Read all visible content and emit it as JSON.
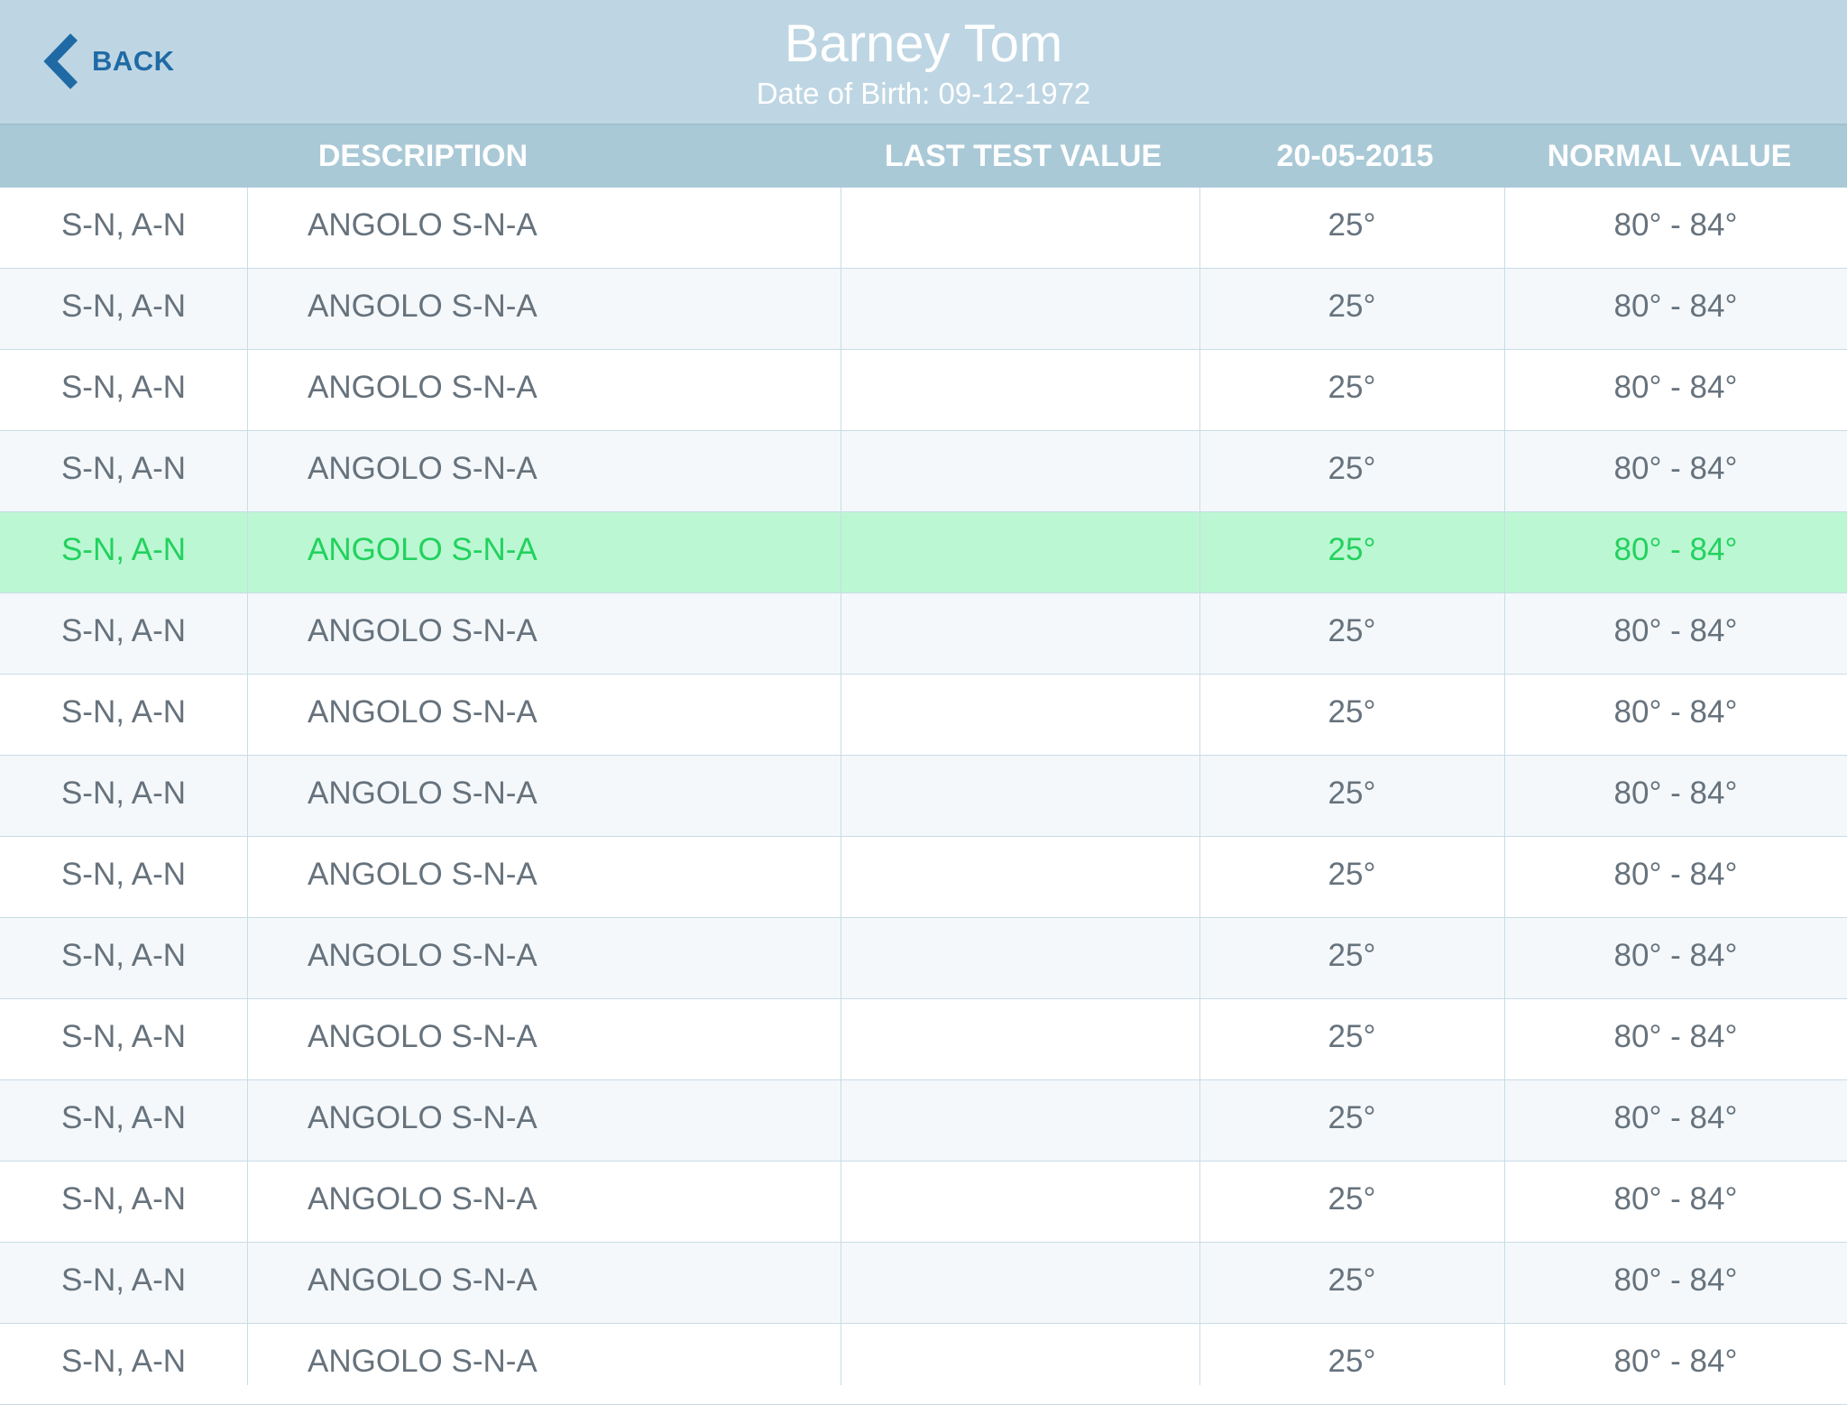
{
  "header": {
    "back_label": "BACK",
    "patient_name": "Barney Tom",
    "patient_dob": "Date of Birth: 09-12-1972"
  },
  "columns": {
    "code": "",
    "description": "DESCRIPTION",
    "last_test_value": "LAST TEST VALUE",
    "date": "20-05-2015",
    "normal_value": "NORMAL VALUE"
  },
  "colors": {
    "header_bg": "#bed6e3",
    "column_header_bg": "#aac9d7",
    "accent_blue": "#1f6aa5",
    "highlight_bg": "#bcf7d3",
    "highlight_text": "#22d25e"
  },
  "highlighted_row": 4,
  "rows": [
    {
      "code": "S-N, A-N",
      "description": "ANGOLO S-N-A",
      "last_test_value": "",
      "date_value": "25°",
      "normal_value": "80° - 84°"
    },
    {
      "code": "S-N, A-N",
      "description": "ANGOLO S-N-A",
      "last_test_value": "",
      "date_value": "25°",
      "normal_value": "80° - 84°"
    },
    {
      "code": "S-N, A-N",
      "description": "ANGOLO S-N-A",
      "last_test_value": "",
      "date_value": "25°",
      "normal_value": "80° - 84°"
    },
    {
      "code": "S-N, A-N",
      "description": "ANGOLO S-N-A",
      "last_test_value": "",
      "date_value": "25°",
      "normal_value": "80° - 84°"
    },
    {
      "code": "S-N, A-N",
      "description": "ANGOLO S-N-A",
      "last_test_value": "",
      "date_value": "25°",
      "normal_value": "80° - 84°"
    },
    {
      "code": "S-N, A-N",
      "description": "ANGOLO S-N-A",
      "last_test_value": "",
      "date_value": "25°",
      "normal_value": "80° - 84°"
    },
    {
      "code": "S-N, A-N",
      "description": "ANGOLO S-N-A",
      "last_test_value": "",
      "date_value": "25°",
      "normal_value": "80° - 84°"
    },
    {
      "code": "S-N, A-N",
      "description": "ANGOLO S-N-A",
      "last_test_value": "",
      "date_value": "25°",
      "normal_value": "80° - 84°"
    },
    {
      "code": "S-N, A-N",
      "description": "ANGOLO S-N-A",
      "last_test_value": "",
      "date_value": "25°",
      "normal_value": "80° - 84°"
    },
    {
      "code": "S-N, A-N",
      "description": "ANGOLO S-N-A",
      "last_test_value": "",
      "date_value": "25°",
      "normal_value": "80° - 84°"
    },
    {
      "code": "S-N, A-N",
      "description": "ANGOLO S-N-A",
      "last_test_value": "",
      "date_value": "25°",
      "normal_value": "80° - 84°"
    },
    {
      "code": "S-N, A-N",
      "description": "ANGOLO S-N-A",
      "last_test_value": "",
      "date_value": "25°",
      "normal_value": "80° - 84°"
    },
    {
      "code": "S-N, A-N",
      "description": "ANGOLO S-N-A",
      "last_test_value": "",
      "date_value": "25°",
      "normal_value": "80° - 84°"
    },
    {
      "code": "S-N, A-N",
      "description": "ANGOLO S-N-A",
      "last_test_value": "",
      "date_value": "25°",
      "normal_value": "80° - 84°"
    },
    {
      "code": "S-N, A-N",
      "description": "ANGOLO S-N-A",
      "last_test_value": "",
      "date_value": "25°",
      "normal_value": "80° - 84°"
    }
  ]
}
